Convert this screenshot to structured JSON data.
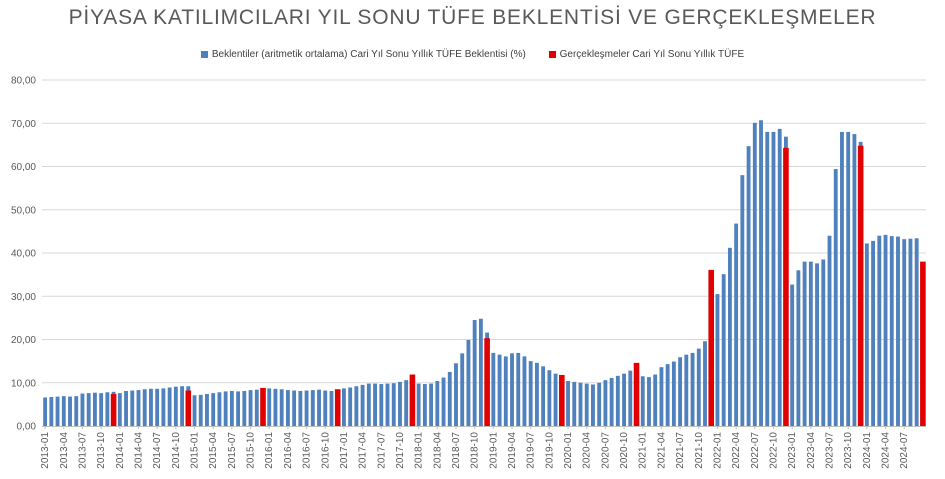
{
  "chart_data": {
    "type": "bar",
    "title": "PİYASA KATILIMCILARI YIL SONU TÜFE BEKLENTİSİ VE GERÇEKLEŞMELER",
    "xlabel": "",
    "ylabel": "",
    "ylim": [
      0,
      80
    ],
    "yticks": [
      "0,00",
      "10,00",
      "20,00",
      "30,00",
      "40,00",
      "50,00",
      "60,00",
      "70,00",
      "80,00"
    ],
    "grid": true,
    "legend_position": "top",
    "colors": {
      "expectation": "#4F81BD",
      "realization": "#E00000",
      "grid": "#D9D9D9",
      "axis": "#BFBFBF"
    },
    "start_period": "2013-01",
    "xtick_labels": [
      "2013-01",
      "2013-04",
      "2013-07",
      "2013-10",
      "2014-01",
      "2014-04",
      "2014-07",
      "2014-10",
      "2015-01",
      "2015-04",
      "2015-07",
      "2015-10",
      "2016-01",
      "2016-04",
      "2016-07",
      "2016-10",
      "2017-01",
      "2017-04",
      "2017-07",
      "2017-10",
      "2018-01",
      "2018-04",
      "2018-07",
      "2018-10",
      "2019-01",
      "2019-04",
      "2019-07",
      "2019-10",
      "2020-01",
      "2020-04",
      "2020-07",
      "2020-10",
      "2021-01",
      "2021-04",
      "2021-07",
      "2021-10",
      "2022-01",
      "2022-04",
      "2022-07",
      "2022-10",
      "2023-01",
      "2023-04",
      "2023-07",
      "2023-10",
      "2024-01",
      "2024-04",
      "2024-07"
    ],
    "series": [
      {
        "name": "Beklentiler (aritmetik ortalama) Cari Yıl Sonu Yıllık TÜFE Beklentisi (%)",
        "values": [
          6.6,
          6.7,
          6.8,
          6.9,
          6.8,
          6.9,
          7.5,
          7.6,
          7.7,
          7.6,
          7.8,
          7.9,
          7.6,
          8.1,
          8.2,
          8.3,
          8.5,
          8.6,
          8.6,
          8.7,
          8.9,
          9.1,
          9.2,
          9.2,
          7.1,
          7.2,
          7.4,
          7.6,
          7.8,
          8.0,
          8.1,
          8.0,
          8.1,
          8.3,
          8.4,
          8.6,
          8.7,
          8.6,
          8.5,
          8.3,
          8.2,
          8.1,
          8.2,
          8.3,
          8.4,
          8.2,
          8.1,
          8.3,
          8.7,
          8.9,
          9.2,
          9.5,
          9.8,
          9.8,
          9.7,
          9.8,
          9.9,
          10.2,
          10.6,
          11.5,
          9.8,
          9.7,
          9.8,
          10.4,
          11.2,
          12.5,
          14.5,
          16.8,
          19.9,
          24.5,
          24.8,
          21.6,
          16.9,
          16.5,
          16.1,
          16.8,
          16.9,
          16.1,
          15.0,
          14.6,
          13.8,
          12.9,
          12.1,
          11.8,
          10.4,
          10.2,
          10.0,
          9.8,
          9.6,
          10.0,
          10.6,
          11.1,
          11.6,
          12.1,
          12.8,
          14.1,
          11.5,
          11.3,
          11.9,
          13.6,
          14.3,
          14.9,
          15.9,
          16.5,
          16.9,
          17.9,
          19.6,
          24.1,
          30.5,
          35.1,
          41.2,
          46.8,
          58.0,
          64.7,
          70.1,
          70.7,
          68.0,
          68.0,
          68.7,
          66.9,
          32.7,
          36.0,
          38.0,
          38.0,
          37.6,
          38.5,
          44.0,
          59.4,
          68.0,
          68.0,
          67.5,
          65.7,
          42.2,
          42.8,
          44.0,
          44.2,
          43.9,
          43.8,
          43.2,
          43.3,
          43.4
        ]
      },
      {
        "name": "Gerçekleşmeler Cari Yıl Sonu Yıllık TÜFE",
        "points": [
          {
            "period": "2013-12",
            "value": 7.4
          },
          {
            "period": "2014-12",
            "value": 8.2
          },
          {
            "period": "2015-12",
            "value": 8.8
          },
          {
            "period": "2016-12",
            "value": 8.5
          },
          {
            "period": "2017-12",
            "value": 11.9
          },
          {
            "period": "2018-12",
            "value": 20.3
          },
          {
            "period": "2019-12",
            "value": 11.8
          },
          {
            "period": "2020-12",
            "value": 14.6
          },
          {
            "period": "2021-12",
            "value": 36.1
          },
          {
            "period": "2022-12",
            "value": 64.3
          },
          {
            "period": "2023-12",
            "value": 64.8
          },
          {
            "period": "2024-10",
            "value": 38.0
          }
        ]
      }
    ]
  }
}
